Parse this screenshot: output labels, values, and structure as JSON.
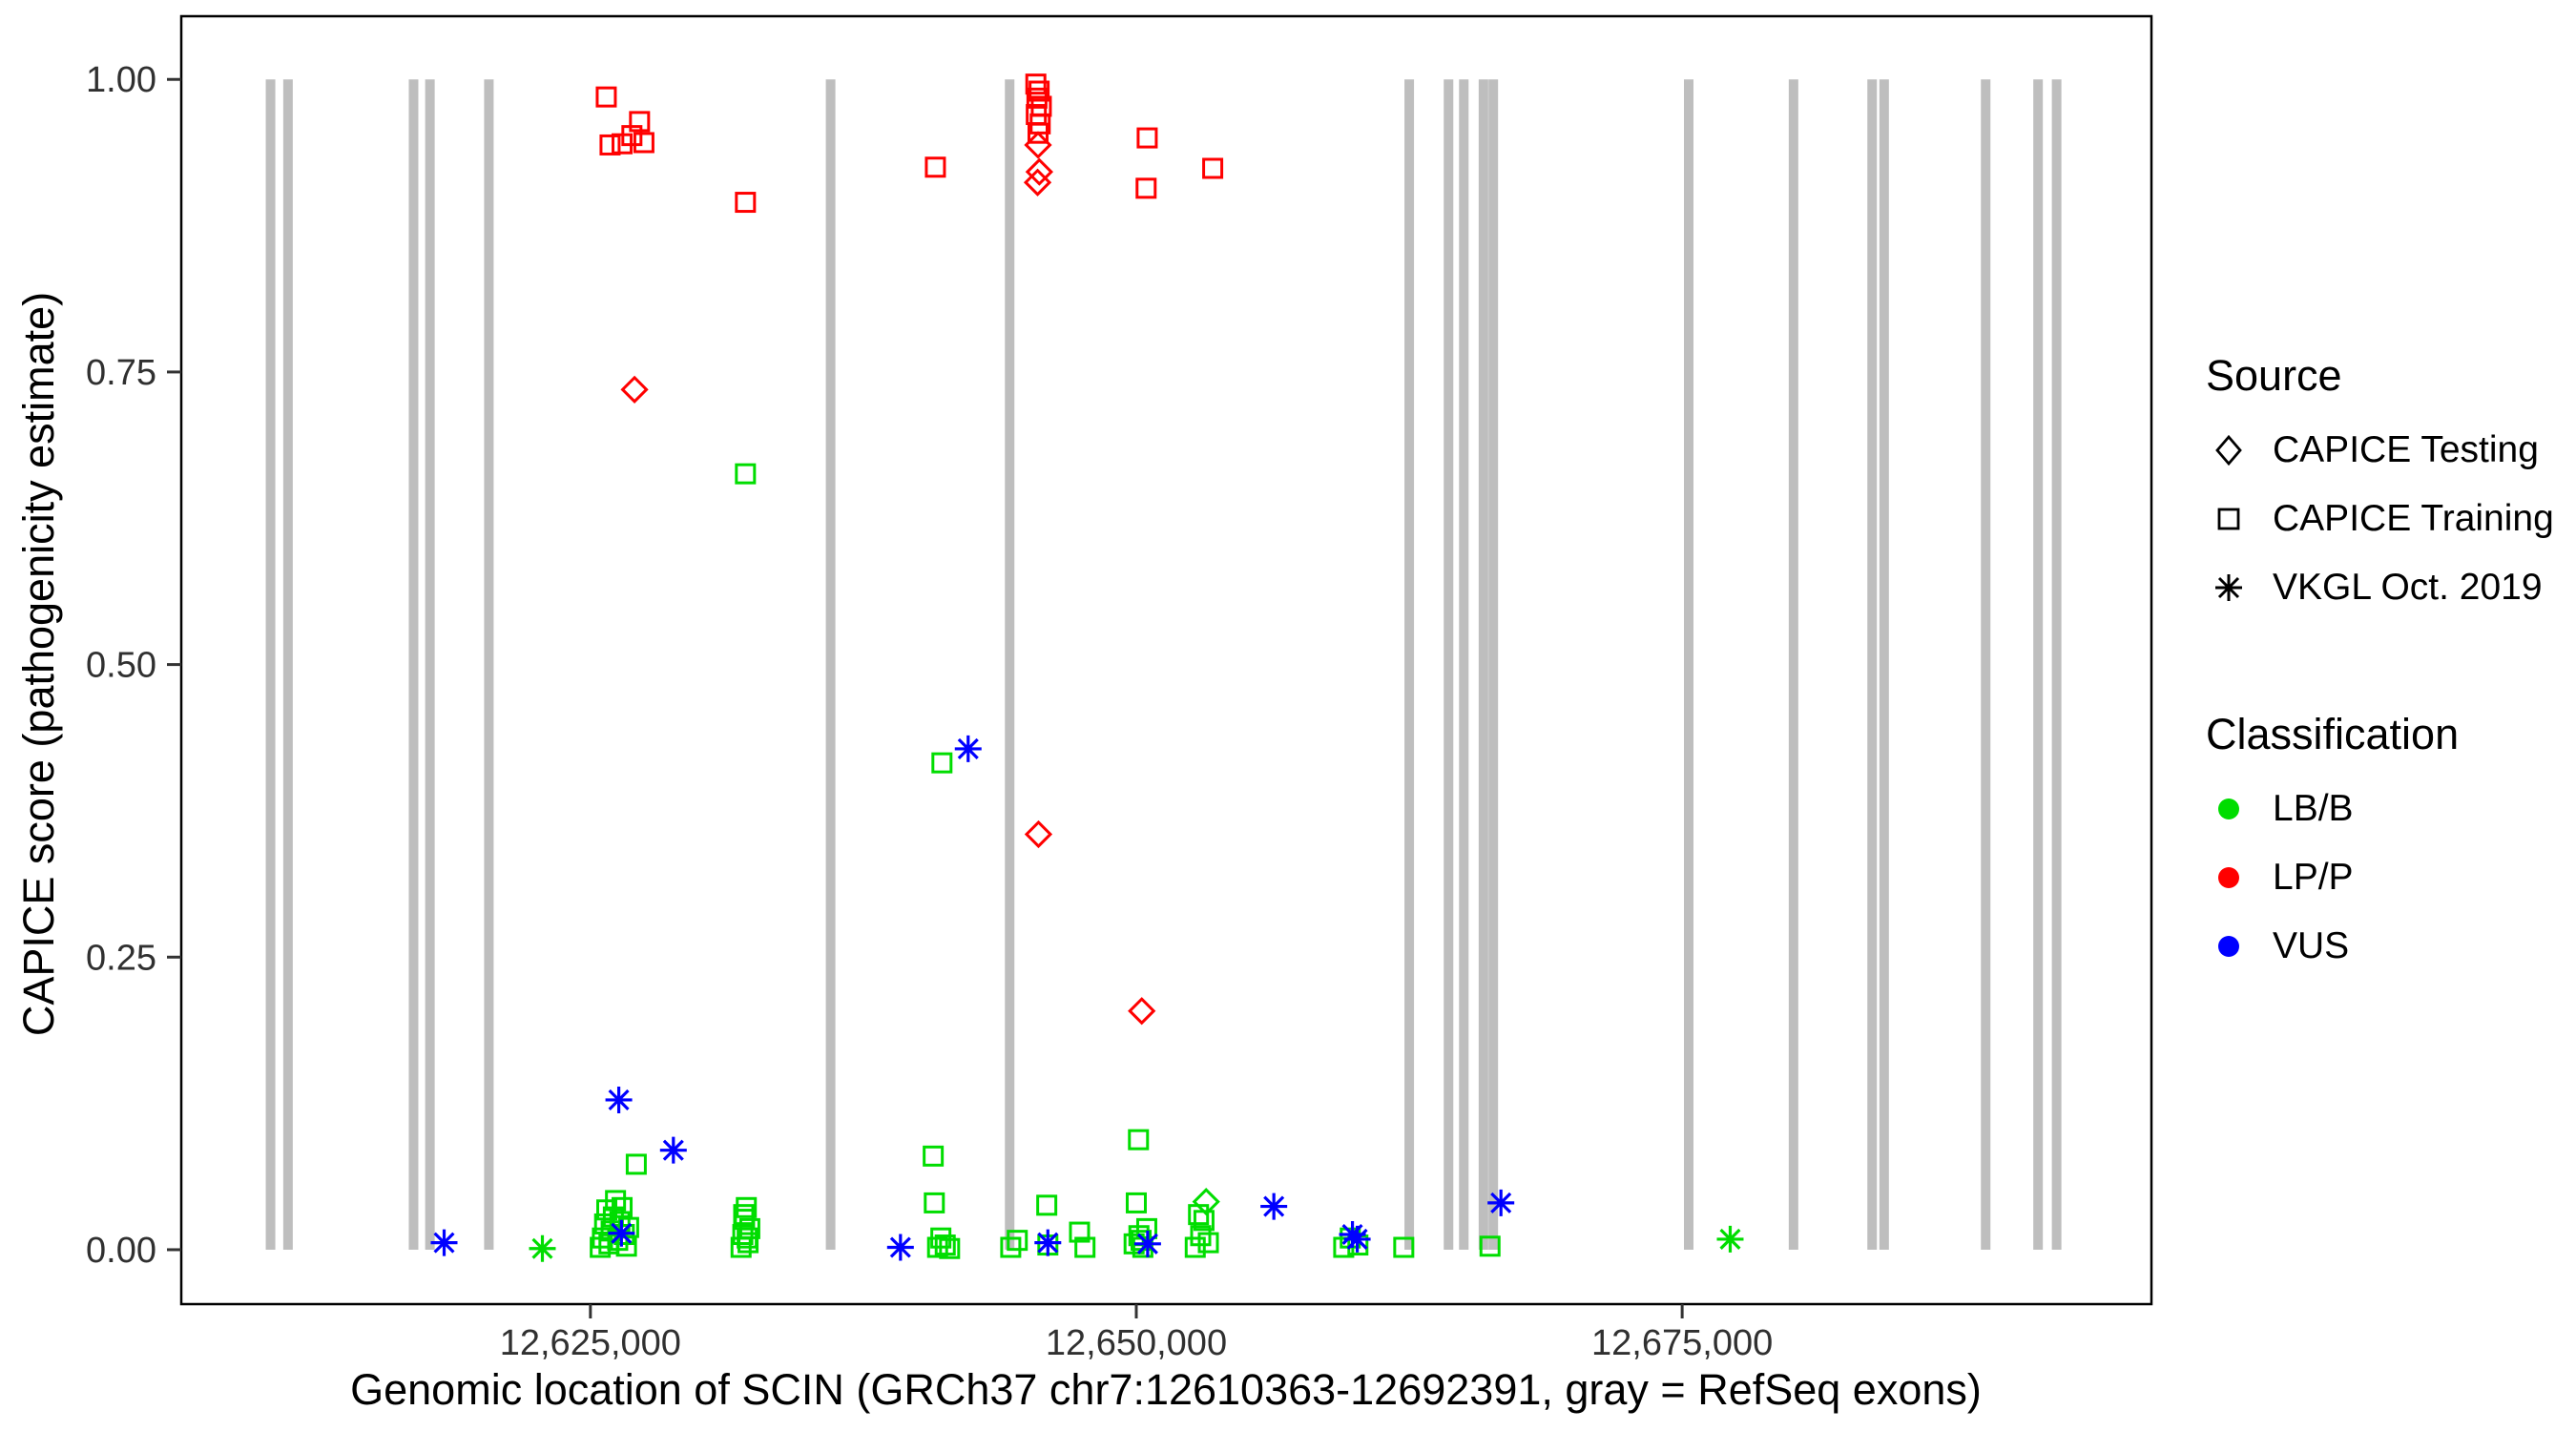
{
  "chart_data": {
    "type": "scatter",
    "title": "",
    "xlabel": "Genomic location of SCIN (GRCh37 chr7:12610363-12692391, gray = RefSeq exons)",
    "ylabel": "CAPICE score (pathogenicity estimate)",
    "grid": false,
    "legend_position": "right",
    "x_axis": {
      "min": 12606262,
      "max": 12696492,
      "ticks": [
        {
          "value": 12625000,
          "label": "12,625,000"
        },
        {
          "value": 12650000,
          "label": "12,650,000"
        },
        {
          "value": 12675000,
          "label": "12,675,000"
        }
      ]
    },
    "y_axis": {
      "min": 0,
      "max": 1,
      "ticks": [
        {
          "value": 0.0,
          "label": "0.00"
        },
        {
          "value": 0.25,
          "label": "0.25"
        },
        {
          "value": 0.5,
          "label": "0.50"
        },
        {
          "value": 0.75,
          "label": "0.75"
        },
        {
          "value": 1.0,
          "label": "1.00"
        }
      ]
    },
    "exon_color": "#BEBEBE",
    "exons": [
      12610350,
      12611150,
      12616900,
      12617650,
      12620350,
      12636000,
      12644200,
      12662500,
      12664300,
      12665000,
      12665900,
      12666350,
      12675300,
      12680100,
      12683700,
      12684250,
      12688900,
      12691300,
      12692150
    ],
    "classification_colors": {
      "LB": "#00DD00",
      "LP": "#FF0000",
      "VUS": "#0000FF"
    },
    "series": [
      {
        "shape": "square",
        "cls": "LP",
        "source": "CAPICE Training",
        "pts": [
          [
            12625726,
            0.985
          ],
          [
            12625900,
            0.944
          ],
          [
            12626450,
            0.945
          ],
          [
            12626900,
            0.952
          ],
          [
            12627250,
            0.964
          ],
          [
            12627450,
            0.946
          ],
          [
            12632100,
            0.895
          ],
          [
            12640800,
            0.925
          ],
          [
            12645400,
            0.996
          ],
          [
            12645550,
            0.99
          ],
          [
            12645450,
            0.984
          ],
          [
            12645650,
            0.977
          ],
          [
            12645420,
            0.97
          ],
          [
            12645600,
            0.962
          ],
          [
            12645500,
            0.954
          ],
          [
            12650500,
            0.95
          ],
          [
            12650450,
            0.907
          ],
          [
            12653500,
            0.924
          ]
        ]
      },
      {
        "shape": "diamond",
        "cls": "LP",
        "source": "CAPICE Testing",
        "pts": [
          [
            12627020,
            0.735
          ],
          [
            12645500,
            0.944
          ],
          [
            12645560,
            0.921
          ],
          [
            12645480,
            0.912
          ],
          [
            12645520,
            0.355
          ],
          [
            12650250,
            0.204
          ]
        ]
      },
      {
        "shape": "square",
        "cls": "LB",
        "source": "CAPICE Training",
        "pts": [
          [
            12625450,
            0.002
          ],
          [
            12625550,
            0.01
          ],
          [
            12625650,
            0.022
          ],
          [
            12625750,
            0.034
          ],
          [
            12625850,
            0.005
          ],
          [
            12625950,
            0.016
          ],
          [
            12626050,
            0.028
          ],
          [
            12626150,
            0.042
          ],
          [
            12626250,
            0.008
          ],
          [
            12626350,
            0.024
          ],
          [
            12626450,
            0.036
          ],
          [
            12626550,
            0.013
          ],
          [
            12626650,
            0.003
          ],
          [
            12626750,
            0.019
          ],
          [
            12627100,
            0.073
          ],
          [
            12631900,
            0.002
          ],
          [
            12631980,
            0.013
          ],
          [
            12632060,
            0.026
          ],
          [
            12632140,
            0.036
          ],
          [
            12632220,
            0.006
          ],
          [
            12632300,
            0.018
          ],
          [
            12632020,
            0.03
          ],
          [
            12632180,
            0.01
          ],
          [
            12632100,
            0.663
          ],
          [
            12641100,
            0.416
          ],
          [
            12640700,
            0.08
          ],
          [
            12640750,
            0.04
          ],
          [
            12640900,
            0.002
          ],
          [
            12641050,
            0.01
          ],
          [
            12641250,
            0.004
          ],
          [
            12641450,
            0.001
          ],
          [
            12644250,
            0.002
          ],
          [
            12644550,
            0.008
          ],
          [
            12645900,
            0.038
          ],
          [
            12645950,
            0.004
          ],
          [
            12647400,
            0.015
          ],
          [
            12647650,
            0.002
          ],
          [
            12650100,
            0.094
          ],
          [
            12650000,
            0.04
          ],
          [
            12649900,
            0.005
          ],
          [
            12650120,
            0.012
          ],
          [
            12650300,
            0.002
          ],
          [
            12650480,
            0.018
          ],
          [
            12650220,
            0.008
          ],
          [
            12652700,
            0.002
          ],
          [
            12652850,
            0.03
          ],
          [
            12652950,
            0.012
          ],
          [
            12653100,
            0.025
          ],
          [
            12653300,
            0.006
          ],
          [
            12659500,
            0.002
          ],
          [
            12659800,
            0.01
          ],
          [
            12660150,
            0.004
          ],
          [
            12662250,
            0.002
          ],
          [
            12666200,
            0.003
          ]
        ]
      },
      {
        "shape": "diamond",
        "cls": "LB",
        "source": "CAPICE Testing",
        "pts": [
          [
            12653200,
            0.041
          ]
        ]
      },
      {
        "shape": "asterisk",
        "cls": "LB",
        "source": "VKGL Oct. 2019",
        "pts": [
          [
            12622800,
            0.001
          ],
          [
            12677200,
            0.009
          ]
        ]
      },
      {
        "shape": "asterisk",
        "cls": "VUS",
        "source": "VKGL Oct. 2019",
        "pts": [
          [
            12618300,
            0.006
          ],
          [
            12626300,
            0.128
          ],
          [
            12626420,
            0.014
          ],
          [
            12628800,
            0.085
          ],
          [
            12639200,
            0.002
          ],
          [
            12642300,
            0.428
          ],
          [
            12645950,
            0.006
          ],
          [
            12650520,
            0.005
          ],
          [
            12656300,
            0.037
          ],
          [
            12659900,
            0.013
          ],
          [
            12660120,
            0.009
          ],
          [
            12666700,
            0.04
          ]
        ]
      }
    ]
  },
  "legend": {
    "source": {
      "title": "Source",
      "items": [
        {
          "shape": "diamond",
          "label": "CAPICE Testing"
        },
        {
          "shape": "square",
          "label": "CAPICE Training"
        },
        {
          "shape": "asterisk",
          "label": "VKGL Oct. 2019"
        }
      ]
    },
    "classification": {
      "title": "Classification",
      "items": [
        {
          "color": "#00DD00",
          "label": "LB/B"
        },
        {
          "color": "#FF0000",
          "label": "LP/P"
        },
        {
          "color": "#0000FF",
          "label": "VUS"
        }
      ]
    }
  }
}
